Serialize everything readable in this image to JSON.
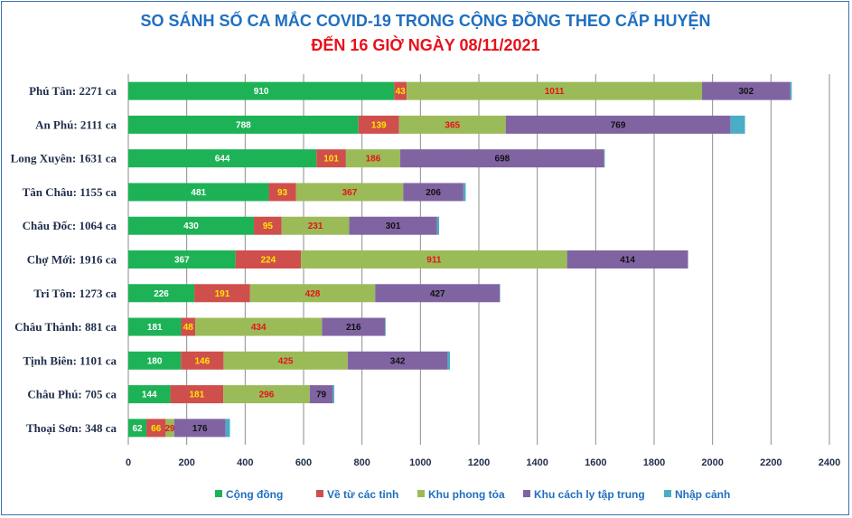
{
  "chart_data": {
    "type": "bar",
    "orientation": "horizontal",
    "stacked": true,
    "title": "SO SÁNH SỐ CA MẮC COVID-19 TRONG CỘNG ĐỒNG THEO CẤP HUYỆN",
    "subtitle": "ĐẾN 16 GIỜ NGÀY 08/11/2021",
    "title_color": "#1f6fc0",
    "subtitle_color": "#e8101a",
    "categories": [
      "Phú Tân: 2271 ca",
      "An Phú: 2111 ca",
      "Long Xuyên: 1631 ca",
      "Tân Châu: 1155 ca",
      "Châu Đốc: 1064 ca",
      "Chợ Mới: 1916 ca",
      "Tri Tôn:  1273 ca",
      "Châu Thành: 881 ca",
      "Tịnh Biên: 1101 ca",
      "Châu Phú: 705 ca",
      "Thoại  Sơn: 348 ca"
    ],
    "series": [
      {
        "name": "Cộng đồng",
        "color": "#1eb257",
        "label_color": "#ffffff",
        "values": [
          910,
          788,
          644,
          481,
          430,
          367,
          226,
          181,
          180,
          144,
          62
        ]
      },
      {
        "name": "Về từ các tỉnh",
        "color": "#cf4f4d",
        "label_color": "#ffe600",
        "values": [
          43,
          139,
          101,
          93,
          95,
          224,
          191,
          48,
          146,
          181,
          66
        ]
      },
      {
        "name": "Khu phong tỏa",
        "color": "#9bbb59",
        "label_color": "#e8101a",
        "values": [
          1011,
          365,
          186,
          367,
          231,
          911,
          428,
          434,
          425,
          296,
          29
        ]
      },
      {
        "name": "Khu cách ly tập trung",
        "color": "#8064a2",
        "label_color": "#111111",
        "values": [
          302,
          769,
          698,
          206,
          301,
          414,
          427,
          216,
          342,
          79,
          176
        ]
      },
      {
        "name": "Nhập cảnh",
        "color": "#4bacc6",
        "label_color": "#111111",
        "values": [
          5,
          50,
          2,
          8,
          7,
          0,
          1,
          2,
          8,
          5,
          15
        ]
      }
    ],
    "show_data_labels": [
      true,
      true,
      true,
      true,
      false
    ],
    "xlim": [
      0,
      2400
    ],
    "xticks": [
      0,
      200,
      400,
      600,
      800,
      1000,
      1200,
      1400,
      1600,
      1800,
      2000,
      2200,
      2400
    ],
    "grid": "vertical",
    "legend": "bottom"
  }
}
